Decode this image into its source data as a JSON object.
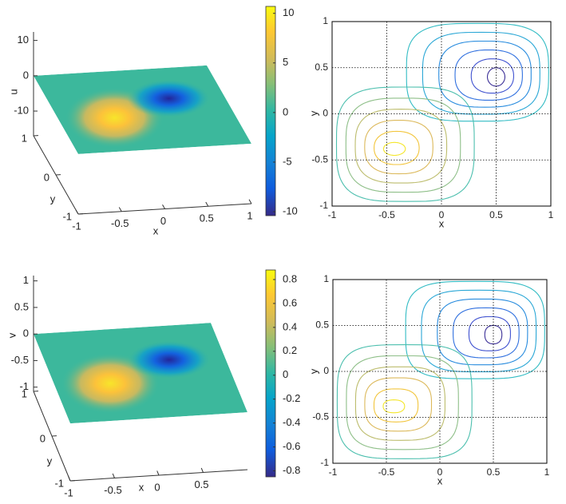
{
  "chart_data": [
    {
      "type": "surface",
      "zlabel": "u",
      "xlabel": "x",
      "ylabel": "y",
      "xlim": [
        -1,
        1
      ],
      "ylim": [
        -1,
        1
      ],
      "zlim": [
        -17,
        12.4
      ],
      "xticks": [
        -1,
        -0.5,
        0,
        0.5,
        1
      ],
      "yticks": [
        -1,
        0,
        1
      ],
      "zticks": [
        -10,
        0,
        10
      ],
      "colorbar": {
        "lim": [
          -10.4,
          10.7
        ],
        "ticks": [
          -10,
          -5,
          0,
          5,
          10
        ]
      }
    },
    {
      "type": "contour",
      "xlabel": "x",
      "ylabel": "y",
      "xlim": [
        -1,
        1
      ],
      "ylim": [
        -1,
        1
      ],
      "xticks": [
        -1,
        -0.5,
        0,
        0.5,
        1
      ],
      "yticks": [
        -1,
        -0.5,
        0,
        0.5,
        1
      ],
      "grid": true
    },
    {
      "type": "surface",
      "zlabel": "v",
      "xlabel": "x",
      "ylabel": "y",
      "xlim": [
        -1,
        1
      ],
      "ylim": [
        -1,
        1
      ],
      "zlim": [
        -1.08,
        1.1
      ],
      "xticks": [
        -1,
        -0.5,
        0,
        0.5
      ],
      "yticks": [
        -1,
        0,
        1
      ],
      "zticks": [
        -1,
        -0.5,
        0,
        0.5,
        1
      ],
      "colorbar": {
        "lim": [
          -0.85,
          0.88
        ],
        "ticks": [
          -0.8,
          -0.6,
          -0.4,
          -0.2,
          0,
          0.2,
          0.4,
          0.6,
          0.8
        ]
      }
    },
    {
      "type": "contour",
      "xlabel": "x",
      "ylabel": "y",
      "xlim": [
        -1,
        1
      ],
      "ylim": [
        -1,
        1
      ],
      "xticks": [
        -1,
        -0.5,
        0,
        0.5,
        1
      ],
      "yticks": [
        -1,
        -0.5,
        0,
        0.5,
        1
      ],
      "grid": true
    }
  ]
}
